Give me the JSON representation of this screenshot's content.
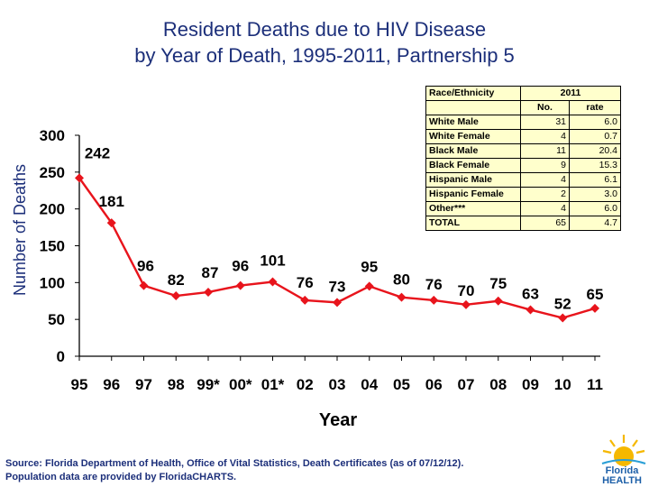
{
  "title_line1": "Resident Deaths due to HIV Disease",
  "title_line2": "by Year of Death, 1995-2011, Partnership 5",
  "chart_data": {
    "type": "line",
    "title": "Resident Deaths due to HIV Disease by Year of Death, 1995-2011, Partnership 5",
    "xlabel": "Year",
    "ylabel": "Number of Deaths",
    "categories": [
      "95",
      "96",
      "97",
      "98",
      "99*",
      "00*",
      "01*",
      "02",
      "03",
      "04",
      "05",
      "06",
      "07",
      "08",
      "09",
      "10",
      "11"
    ],
    "series": [
      {
        "name": "Deaths",
        "values": [
          242,
          181,
          96,
          82,
          87,
          96,
          101,
          76,
          73,
          95,
          80,
          76,
          70,
          75,
          63,
          52,
          65
        ]
      }
    ],
    "data_labels": [
      "242",
      "181",
      "96",
      "82",
      "87",
      "96",
      "101",
      "76",
      "73",
      "95",
      "80",
      "76",
      "70",
      "75",
      "63",
      "52",
      "65"
    ],
    "ylim": [
      0,
      300
    ],
    "yticks": [
      0,
      50,
      100,
      150,
      200,
      250,
      300
    ],
    "color": "#e8141c",
    "grid": false
  },
  "table": {
    "header_label": "Race/Ethnicity",
    "header_year": "2011",
    "col_no": "No.",
    "col_rate": "rate",
    "rows": [
      {
        "label": "White Male",
        "no": "31",
        "rate": "6.0"
      },
      {
        "label": "White Female",
        "no": "4",
        "rate": "0.7"
      },
      {
        "label": "Black Male",
        "no": "11",
        "rate": "20.4"
      },
      {
        "label": "Black Female",
        "no": "9",
        "rate": "15.3"
      },
      {
        "label": "Hispanic Male",
        "no": "4",
        "rate": "6.1"
      },
      {
        "label": "Hispanic Female",
        "no": "2",
        "rate": "3.0"
      },
      {
        "label": "Other***",
        "no": "4",
        "rate": "6.0"
      },
      {
        "label": "TOTAL",
        "no": "65",
        "rate": "4.7"
      }
    ]
  },
  "source_line1": "Source:  Florida Department of Health, Office of Vital Statistics, Death Certificates (as of 07/12/12).",
  "source_line2": "Population data are provided by FloridaCHARTS.",
  "logo": {
    "line1": "Florida",
    "line2": "HEALTH"
  }
}
